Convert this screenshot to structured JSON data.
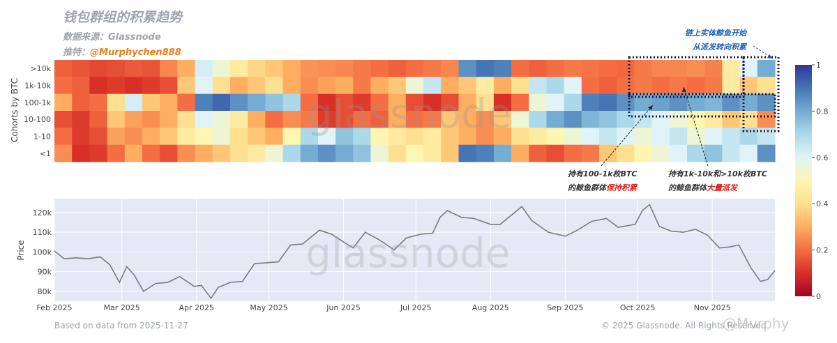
{
  "header": {
    "title": "钱包群组的积累趋势",
    "source": "数据来源：Glassnode",
    "twitter_label": "推特：",
    "twitter_handle": "@Murphychen888"
  },
  "watermark": {
    "text": "glassnode",
    "corner": "@Murphy"
  },
  "annotations": {
    "whale_top_line1": "链上实体鲸鱼开始",
    "whale_top_line2": "从派发转向积累",
    "hold_line1": "持有100-1k枚BTC",
    "hold_line2_prefix": "的鲸鱼群体",
    "hold_line2_red": "保持积累",
    "dist_line1": "持有1k-10k和>10k枚BTC",
    "dist_line2_prefix": "的鲸鱼群体",
    "dist_line2_red": "大量派发"
  },
  "footer": {
    "left": "Based on data from 2025-11-27",
    "right": "© 2025 Glassnode. All Rights Reserved"
  },
  "colors": {
    "heat_low": "#a50026",
    "heat_mid": "#fdf6b1",
    "heat_high": "#313695",
    "price_bg": "#e5e9f5",
    "price_line": "#7b7b7b",
    "handle": "#f07b1a",
    "highlight_red": "#e0201b",
    "note_blue": "#1f5fb5"
  },
  "chart_data": [
    {
      "type": "heatmap",
      "title": "钱包群组的积累趋势",
      "ylabel": "Cohorts by BTC",
      "rows": [
        ">10k",
        "1k-10k",
        "100-1k",
        "10-100",
        "1-10",
        "<1"
      ],
      "colorbar": {
        "range": [
          0,
          1
        ],
        "ticks": [
          "0",
          "0.2",
          "0.4",
          "0.6",
          "0.8",
          "1"
        ]
      },
      "date_range": [
        "2025-02-01",
        "2025-11-27"
      ],
      "segments": [
        {
          "row": ">10k",
          "values": [
            0.18,
            0.16,
            0.14,
            0.15,
            0.17,
            0.16,
            0.24,
            0.3,
            0.62,
            0.55,
            0.45,
            0.38,
            0.35,
            0.3,
            0.26,
            0.25,
            0.24,
            0.22,
            0.2,
            0.18,
            0.2,
            0.22,
            0.24,
            0.85,
            0.9,
            0.88,
            0.2,
            0.18,
            0.2,
            0.22,
            0.21,
            0.2,
            0.19,
            0.22,
            0.24,
            0.24,
            0.25,
            0.23,
            0.45,
            0.6,
            0.8
          ]
        },
        {
          "row": "1k-10k",
          "values": [
            0.2,
            0.18,
            0.1,
            0.12,
            0.1,
            0.12,
            0.15,
            0.35,
            0.6,
            0.4,
            0.3,
            0.35,
            0.4,
            0.3,
            0.25,
            0.28,
            0.3,
            0.22,
            0.3,
            0.35,
            0.55,
            0.65,
            0.3,
            0.35,
            0.45,
            0.3,
            0.4,
            0.65,
            0.7,
            0.6,
            0.2,
            0.18,
            0.2,
            0.22,
            0.2,
            0.22,
            0.2,
            0.22,
            0.45,
            0.35,
            0.4
          ]
        },
        {
          "row": "100-1k",
          "values": [
            0.3,
            0.18,
            0.2,
            0.4,
            0.62,
            0.35,
            0.3,
            0.2,
            0.88,
            0.92,
            0.85,
            0.8,
            0.75,
            0.7,
            0.2,
            0.1,
            0.15,
            0.12,
            0.2,
            0.3,
            0.15,
            0.1,
            0.15,
            0.3,
            0.4,
            0.1,
            0.2,
            0.55,
            0.6,
            0.7,
            0.88,
            0.9,
            0.85,
            0.8,
            0.82,
            0.85,
            0.8,
            0.78,
            0.85,
            0.8,
            0.85
          ]
        },
        {
          "row": "10-100",
          "values": [
            0.15,
            0.12,
            0.18,
            0.35,
            0.28,
            0.25,
            0.3,
            0.4,
            0.6,
            0.55,
            0.45,
            0.3,
            0.2,
            0.25,
            0.22,
            0.12,
            0.15,
            0.2,
            0.18,
            0.3,
            0.2,
            0.22,
            0.35,
            0.3,
            0.25,
            0.35,
            0.55,
            0.7,
            0.8,
            0.85,
            0.78,
            0.75,
            0.7,
            0.65,
            0.6,
            0.55,
            0.5,
            0.45,
            0.35,
            0.4,
            0.25
          ]
        },
        {
          "row": "1-10",
          "values": [
            0.2,
            0.12,
            0.15,
            0.28,
            0.25,
            0.3,
            0.35,
            0.45,
            0.5,
            0.55,
            0.4,
            0.35,
            0.3,
            0.5,
            0.7,
            0.6,
            0.75,
            0.7,
            0.5,
            0.45,
            0.4,
            0.45,
            0.35,
            0.3,
            0.25,
            0.3,
            0.4,
            0.45,
            0.5,
            0.55,
            0.6,
            0.65,
            0.6,
            0.55,
            0.6,
            0.65,
            0.55,
            0.6,
            0.65,
            0.7,
            0.65
          ]
        },
        {
          "row": "<1",
          "values": [
            0.25,
            0.1,
            0.12,
            0.2,
            0.3,
            0.2,
            0.15,
            0.25,
            0.3,
            0.35,
            0.4,
            0.45,
            0.55,
            0.7,
            0.8,
            0.85,
            0.8,
            0.75,
            0.55,
            0.4,
            0.5,
            0.45,
            0.35,
            0.9,
            0.88,
            0.8,
            0.3,
            0.18,
            0.15,
            0.2,
            0.22,
            0.35,
            0.4,
            0.5,
            0.55,
            0.6,
            0.7,
            0.75,
            0.65,
            0.6,
            0.85
          ]
        }
      ]
    },
    {
      "type": "line",
      "ylabel": "Price",
      "x_ticks": [
        "Feb 2025",
        "Mar 2025",
        "Apr 2025",
        "May 2025",
        "Jun 2025",
        "Jul 2025",
        "Aug 2025",
        "Sep 2025",
        "Oct 2025",
        "Nov 2025"
      ],
      "y_ticks": [
        "80k",
        "90k",
        "100k",
        "110k",
        "120k"
      ],
      "ylim": [
        75000,
        127000
      ],
      "series": [
        {
          "name": "BTC Price",
          "x": [
            "2025-02-01",
            "2025-02-05",
            "2025-02-10",
            "2025-02-15",
            "2025-02-20",
            "2025-02-24",
            "2025-02-28",
            "2025-03-03",
            "2025-03-06",
            "2025-03-10",
            "2025-03-15",
            "2025-03-20",
            "2025-03-25",
            "2025-03-31",
            "2025-04-03",
            "2025-04-07",
            "2025-04-10",
            "2025-04-15",
            "2025-04-20",
            "2025-04-25",
            "2025-04-30",
            "2025-05-05",
            "2025-05-10",
            "2025-05-15",
            "2025-05-22",
            "2025-05-27",
            "2025-06-01",
            "2025-06-05",
            "2025-06-10",
            "2025-06-16",
            "2025-06-22",
            "2025-06-27",
            "2025-07-03",
            "2025-07-08",
            "2025-07-11",
            "2025-07-14",
            "2025-07-20",
            "2025-07-25",
            "2025-08-01",
            "2025-08-05",
            "2025-08-10",
            "2025-08-14",
            "2025-08-18",
            "2025-08-25",
            "2025-09-01",
            "2025-09-06",
            "2025-09-12",
            "2025-09-18",
            "2025-09-23",
            "2025-09-30",
            "2025-10-03",
            "2025-10-06",
            "2025-10-10",
            "2025-10-15",
            "2025-10-20",
            "2025-10-25",
            "2025-10-30",
            "2025-11-04",
            "2025-11-08",
            "2025-11-12",
            "2025-11-17",
            "2025-11-21",
            "2025-11-24",
            "2025-11-27"
          ],
          "y": [
            100500,
            96500,
            97000,
            96500,
            97500,
            93500,
            84500,
            92500,
            88500,
            80000,
            84000,
            84500,
            87500,
            82500,
            83000,
            76500,
            82000,
            84500,
            85000,
            94000,
            94500,
            95000,
            103500,
            104000,
            111000,
            109000,
            105000,
            102000,
            110000,
            106000,
            101000,
            107000,
            109000,
            109500,
            117500,
            121000,
            117500,
            117000,
            114000,
            114000,
            119000,
            123000,
            116000,
            110000,
            108000,
            111000,
            115500,
            117000,
            112500,
            114000,
            121000,
            124000,
            113000,
            110500,
            110000,
            111500,
            108500,
            102000,
            102500,
            103500,
            92000,
            85000,
            86000,
            90500
          ]
        }
      ]
    }
  ]
}
